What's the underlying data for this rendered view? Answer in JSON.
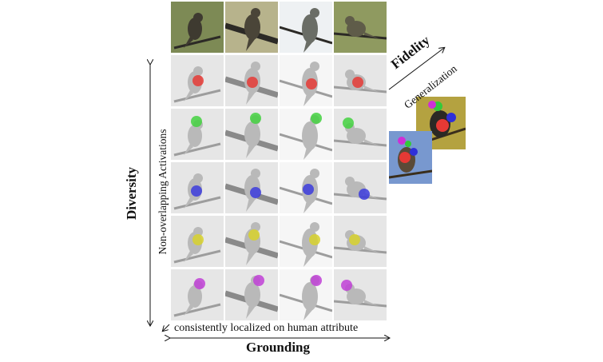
{
  "labels": {
    "diversity": "Diversity",
    "non_overlapping": "Non-overlapping Activations",
    "consistently": "consistently localized on human attribute",
    "grounding": "Grounding",
    "fidelity": "Fidelity",
    "generalization": "Generalization"
  },
  "grid": {
    "columns": [
      {
        "bg": "#7d8a55",
        "bird": "#3e3a30"
      },
      {
        "bg": "#b7b38c",
        "bird": "#4a4538"
      },
      {
        "bg": "#eef1f3",
        "bird": "#6a6d66"
      },
      {
        "bg": "#8f9a60",
        "bird": "#5f5c49"
      }
    ],
    "activation_colors": [
      "#e53935",
      "#43d13f",
      "#3b3bdc",
      "#d7d12b",
      "#c03fd6"
    ]
  },
  "example_birds": {
    "top_bg": "#b4a240",
    "bottom_bg": "#7898cf",
    "parts": [
      "#2f2fd8",
      "#e53935",
      "#cf2fd6",
      "#34c93a"
    ]
  }
}
